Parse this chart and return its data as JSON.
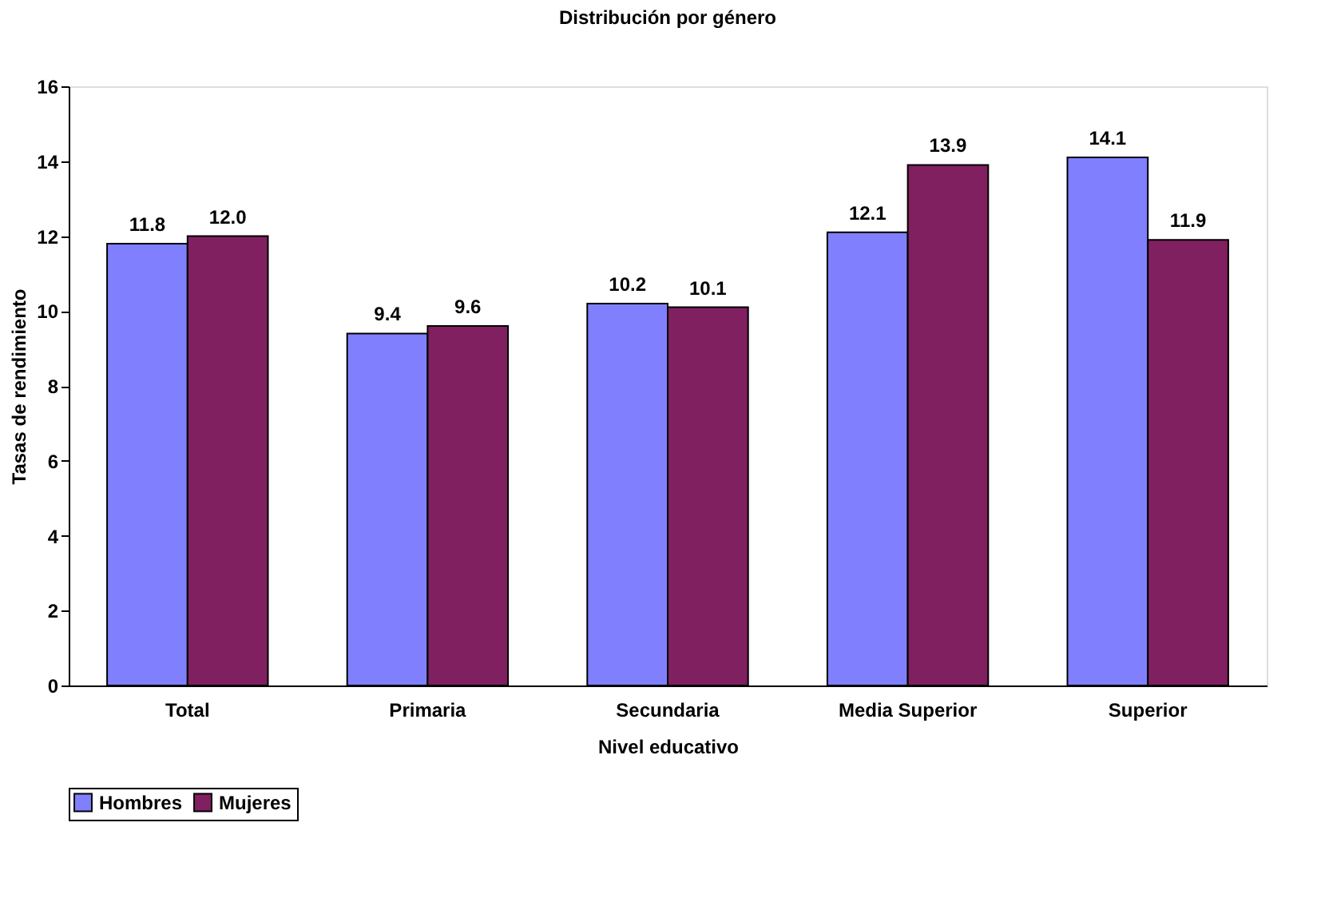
{
  "chart_data": {
    "type": "bar",
    "title": "Distribución por género",
    "xlabel": "Nivel educativo",
    "ylabel": "Tasas de rendimiento",
    "categories": [
      "Total",
      "Primaria",
      "Secundaria",
      "Media Superior",
      "Superior"
    ],
    "series": [
      {
        "name": "Hombres",
        "color": "#8080ff",
        "values": [
          11.8,
          9.4,
          10.2,
          12.1,
          14.1
        ],
        "value_labels": [
          "11.8",
          "9.4",
          "10.2",
          "12.1",
          "14.1"
        ]
      },
      {
        "name": "Mujeres",
        "color": "#802060",
        "values": [
          12.0,
          9.6,
          10.1,
          13.9,
          11.9
        ],
        "value_labels": [
          "12.0",
          "9.6",
          "10.1",
          "13.9",
          "11.9"
        ]
      }
    ],
    "ylim": [
      0,
      16
    ],
    "yticks": [
      0,
      2,
      4,
      6,
      8,
      10,
      12,
      14,
      16
    ],
    "grid": false,
    "legend": "bottom"
  }
}
